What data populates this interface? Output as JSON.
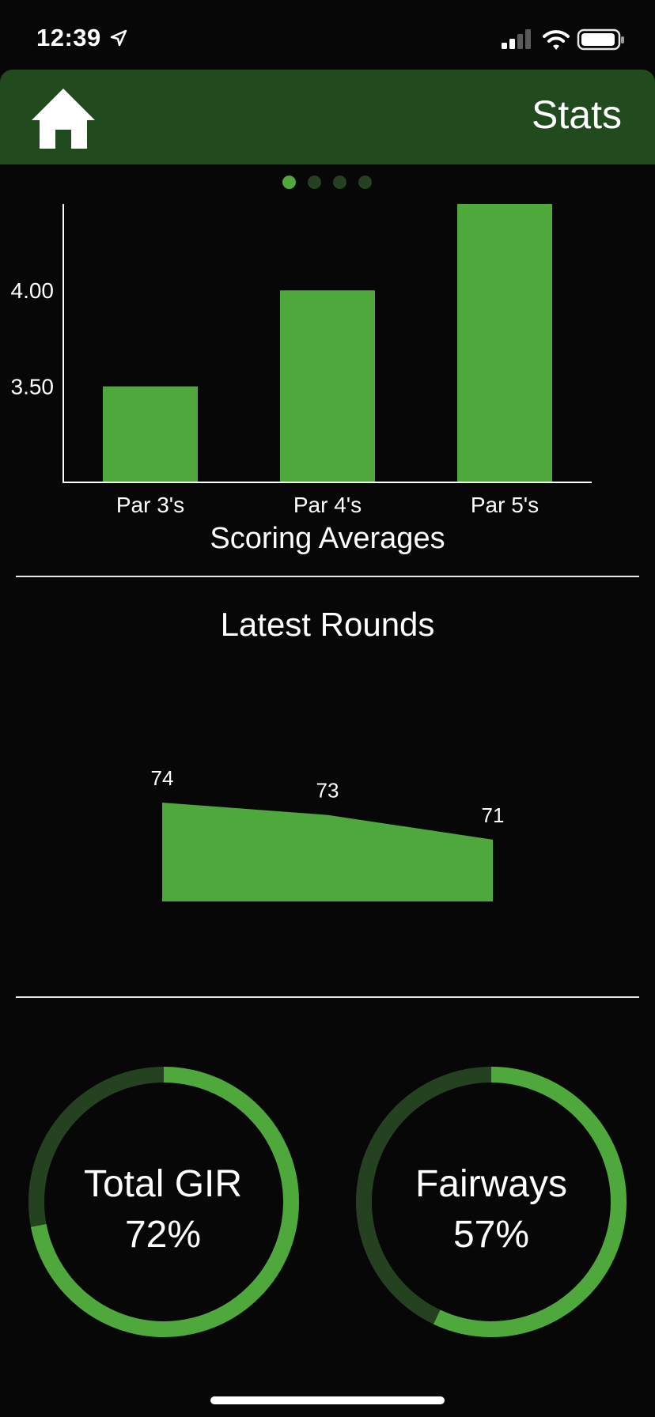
{
  "status_bar": {
    "time": "12:39",
    "location_icon": "location-arrow-icon",
    "signal_icon": "cellular-signal-icon",
    "wifi_icon": "wifi-icon",
    "battery_icon": "battery-icon"
  },
  "header": {
    "home_icon": "home-icon",
    "title": "Stats",
    "background": "#214a1f"
  },
  "pager": {
    "pages": 4,
    "active_index": 0
  },
  "colors": {
    "accent": "#4fa83c",
    "accent_dark": "#24421f",
    "background": "#070707"
  },
  "chart_data": [
    {
      "type": "bar",
      "categories": [
        "Par 3's",
        "Par 4's",
        "Par 5's"
      ],
      "values": [
        3.5,
        4.0,
        4.45
      ],
      "title": "Scoring Averages",
      "xlabel": "",
      "ylabel": "",
      "ylim": [
        3.0,
        4.45
      ],
      "yticks": [
        3.5,
        4.0
      ],
      "ytick_labels": [
        "3.50",
        "4.00"
      ],
      "grid": false
    },
    {
      "type": "area",
      "title": "Latest Rounds",
      "x": [
        1,
        2,
        3
      ],
      "values": [
        74,
        73,
        71
      ],
      "labels": [
        "74",
        "73",
        "71"
      ],
      "ylim": [
        66,
        74
      ]
    }
  ],
  "stats": [
    {
      "label": "Total GIR",
      "value_text": "72%",
      "fraction": 0.72
    },
    {
      "label": "Fairways",
      "value_text": "57%",
      "fraction": 0.57
    }
  ]
}
